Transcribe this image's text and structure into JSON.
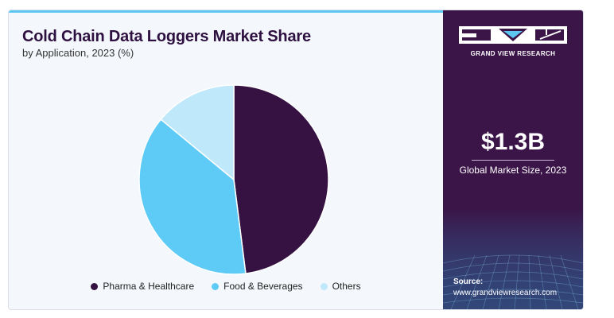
{
  "report": {
    "title": "Cold Chain Data Loggers Market Share",
    "subtitle": "by Application, 2023 (%)"
  },
  "chart_data": {
    "type": "pie",
    "title": "Cold Chain Data Loggers Market Share",
    "subtitle": "by Application, 2023 (%)",
    "categories": [
      "Pharma & Healthcare",
      "Food & Beverages",
      "Others"
    ],
    "values": [
      48,
      38,
      14
    ],
    "colors": [
      "#351241",
      "#5ecbf7",
      "#bfe8fa"
    ],
    "start_angle_deg": 0,
    "direction": "clockwise",
    "legend_position": "bottom"
  },
  "sidebar": {
    "brand": "GRAND VIEW RESEARCH",
    "stat_value": "$1.3B",
    "stat_label": "Global Market Size, 2023",
    "source_label": "Source:",
    "source_url": "www.grandviewresearch.com"
  },
  "colors": {
    "sidebar_bg": "#3b1448",
    "accent": "#5cc8f2",
    "title": "#2e1140"
  }
}
